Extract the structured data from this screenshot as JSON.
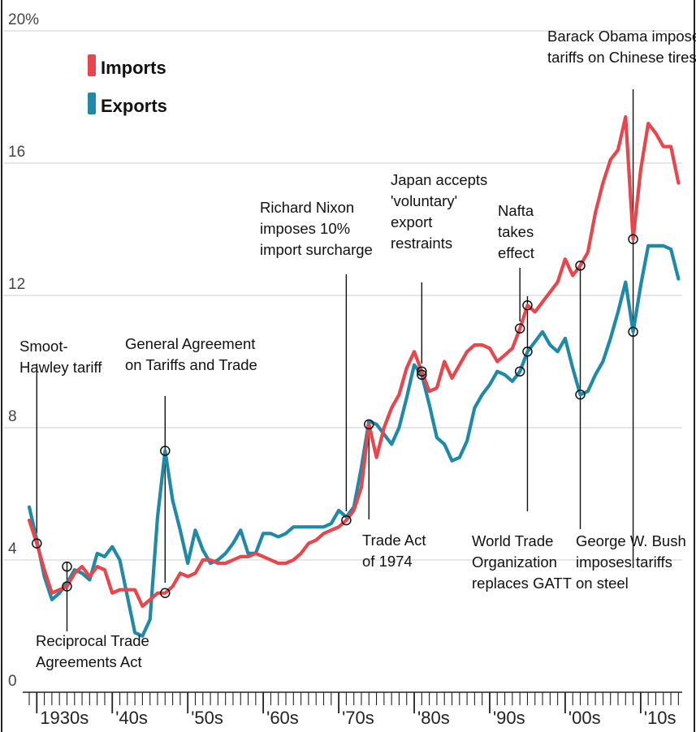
{
  "chart_data": {
    "type": "line",
    "title": "",
    "xlabel": "",
    "ylabel": "",
    "ylim": [
      0,
      20
    ],
    "xlim": [
      1929,
      2015.5
    ],
    "y_ticks": [
      {
        "value": 0,
        "label": "0"
      },
      {
        "value": 4,
        "label": "4"
      },
      {
        "value": 8,
        "label": "8"
      },
      {
        "value": 12,
        "label": "12"
      },
      {
        "value": 16,
        "label": "16"
      },
      {
        "value": 20,
        "label": "20%"
      }
    ],
    "x_ticks": [
      {
        "year": 1930,
        "label": "1930s"
      },
      {
        "year": 1940,
        "label": "'40s"
      },
      {
        "year": 1950,
        "label": "'50s"
      },
      {
        "year": 1960,
        "label": "'60s"
      },
      {
        "year": 1970,
        "label": "'70s"
      },
      {
        "year": 1980,
        "label": "'80s"
      },
      {
        "year": 1990,
        "label": "'90s"
      },
      {
        "year": 2000,
        "label": "'00s"
      },
      {
        "year": 2010,
        "label": "'10s"
      }
    ],
    "grid": true,
    "legend_position": "top-left",
    "series": [
      {
        "name": "Imports",
        "color": "#e8454c",
        "points": [
          [
            1929,
            5.2
          ],
          [
            1930,
            4.5
          ],
          [
            1931,
            3.7
          ],
          [
            1932,
            3.0
          ],
          [
            1933,
            3.1
          ],
          [
            1934,
            3.2
          ],
          [
            1935,
            3.6
          ],
          [
            1936,
            3.8
          ],
          [
            1937,
            3.5
          ],
          [
            1938,
            3.8
          ],
          [
            1939,
            3.7
          ],
          [
            1940,
            3.0
          ],
          [
            1941,
            3.1
          ],
          [
            1942,
            3.1
          ],
          [
            1943,
            3.1
          ],
          [
            1944,
            2.6
          ],
          [
            1945,
            2.8
          ],
          [
            1946,
            3.0
          ],
          [
            1947,
            3.0
          ],
          [
            1948,
            3.2
          ],
          [
            1949,
            3.6
          ],
          [
            1950,
            3.5
          ],
          [
            1951,
            3.6
          ],
          [
            1952,
            4.0
          ],
          [
            1953,
            4.0
          ],
          [
            1954,
            3.9
          ],
          [
            1955,
            3.9
          ],
          [
            1956,
            4.0
          ],
          [
            1957,
            4.1
          ],
          [
            1958,
            4.1
          ],
          [
            1959,
            4.2
          ],
          [
            1960,
            4.1
          ],
          [
            1961,
            4.0
          ],
          [
            1962,
            3.9
          ],
          [
            1963,
            3.9
          ],
          [
            1964,
            4.0
          ],
          [
            1965,
            4.2
          ],
          [
            1966,
            4.5
          ],
          [
            1967,
            4.6
          ],
          [
            1968,
            4.8
          ],
          [
            1969,
            4.9
          ],
          [
            1970,
            5.0
          ],
          [
            1971,
            5.2
          ],
          [
            1972,
            5.5
          ],
          [
            1973,
            6.2
          ],
          [
            1974,
            8.1
          ],
          [
            1975,
            7.1
          ],
          [
            1976,
            8.0
          ],
          [
            1977,
            8.6
          ],
          [
            1978,
            9.0
          ],
          [
            1979,
            9.8
          ],
          [
            1980,
            10.3
          ],
          [
            1981,
            9.7
          ],
          [
            1982,
            9.1
          ],
          [
            1983,
            9.2
          ],
          [
            1984,
            10.0
          ],
          [
            1985,
            9.5
          ],
          [
            1986,
            9.9
          ],
          [
            1987,
            10.3
          ],
          [
            1988,
            10.5
          ],
          [
            1989,
            10.5
          ],
          [
            1990,
            10.4
          ],
          [
            1991,
            10.0
          ],
          [
            1992,
            10.2
          ],
          [
            1993,
            10.4
          ],
          [
            1994,
            11.0
          ],
          [
            1995,
            11.7
          ],
          [
            1996,
            11.5
          ],
          [
            1997,
            11.8
          ],
          [
            1998,
            12.1
          ],
          [
            1999,
            12.4
          ],
          [
            2000,
            13.1
          ],
          [
            2001,
            12.6
          ],
          [
            2002,
            12.9
          ],
          [
            2003,
            13.3
          ],
          [
            2004,
            14.5
          ],
          [
            2005,
            15.4
          ],
          [
            2006,
            16.1
          ],
          [
            2007,
            16.4
          ],
          [
            2008,
            17.4
          ],
          [
            2009,
            13.7
          ],
          [
            2010,
            15.8
          ],
          [
            2011,
            17.2
          ],
          [
            2012,
            16.9
          ],
          [
            2013,
            16.5
          ],
          [
            2014,
            16.5
          ],
          [
            2015,
            15.4
          ]
        ]
      },
      {
        "name": "Exports",
        "color": "#1e8aa8",
        "points": [
          [
            1929,
            5.6
          ],
          [
            1930,
            4.6
          ],
          [
            1931,
            3.5
          ],
          [
            1932,
            2.8
          ],
          [
            1933,
            3.0
          ],
          [
            1934,
            3.3
          ],
          [
            1935,
            3.7
          ],
          [
            1936,
            3.6
          ],
          [
            1937,
            3.4
          ],
          [
            1938,
            4.2
          ],
          [
            1939,
            4.1
          ],
          [
            1940,
            4.4
          ],
          [
            1941,
            4.0
          ],
          [
            1942,
            2.9
          ],
          [
            1943,
            1.8
          ],
          [
            1944,
            1.7
          ],
          [
            1945,
            2.2
          ],
          [
            1946,
            5.3
          ],
          [
            1947,
            7.3
          ],
          [
            1948,
            5.8
          ],
          [
            1949,
            4.9
          ],
          [
            1950,
            3.9
          ],
          [
            1951,
            4.9
          ],
          [
            1952,
            4.3
          ],
          [
            1953,
            3.9
          ],
          [
            1954,
            4.0
          ],
          [
            1955,
            4.2
          ],
          [
            1956,
            4.5
          ],
          [
            1957,
            4.9
          ],
          [
            1958,
            4.2
          ],
          [
            1959,
            4.2
          ],
          [
            1960,
            4.8
          ],
          [
            1961,
            4.8
          ],
          [
            1962,
            4.7
          ],
          [
            1963,
            4.8
          ],
          [
            1964,
            5.0
          ],
          [
            1965,
            5.0
          ],
          [
            1966,
            5.0
          ],
          [
            1967,
            5.0
          ],
          [
            1968,
            5.0
          ],
          [
            1969,
            5.1
          ],
          [
            1970,
            5.5
          ],
          [
            1971,
            5.3
          ],
          [
            1972,
            5.6
          ],
          [
            1973,
            6.8
          ],
          [
            1974,
            8.2
          ],
          [
            1975,
            8.1
          ],
          [
            1976,
            7.8
          ],
          [
            1977,
            7.5
          ],
          [
            1978,
            8.0
          ],
          [
            1979,
            8.9
          ],
          [
            1980,
            9.9
          ],
          [
            1981,
            9.6
          ],
          [
            1982,
            8.7
          ],
          [
            1983,
            7.7
          ],
          [
            1984,
            7.5
          ],
          [
            1985,
            7.0
          ],
          [
            1986,
            7.1
          ],
          [
            1987,
            7.6
          ],
          [
            1988,
            8.6
          ],
          [
            1989,
            9.0
          ],
          [
            1990,
            9.3
          ],
          [
            1991,
            9.7
          ],
          [
            1992,
            9.6
          ],
          [
            1993,
            9.4
          ],
          [
            1994,
            9.7
          ],
          [
            1995,
            10.3
          ],
          [
            1996,
            10.6
          ],
          [
            1997,
            10.9
          ],
          [
            1998,
            10.5
          ],
          [
            1999,
            10.3
          ],
          [
            2000,
            10.7
          ],
          [
            2001,
            9.8
          ],
          [
            2002,
            9.0
          ],
          [
            2003,
            9.1
          ],
          [
            2004,
            9.6
          ],
          [
            2005,
            10.0
          ],
          [
            2006,
            10.7
          ],
          [
            2007,
            11.5
          ],
          [
            2008,
            12.4
          ],
          [
            2009,
            10.9
          ],
          [
            2010,
            12.3
          ],
          [
            2011,
            13.5
          ],
          [
            2012,
            13.5
          ],
          [
            2013,
            13.5
          ],
          [
            2014,
            13.4
          ],
          [
            2015,
            12.5
          ]
        ]
      }
    ],
    "annotations": [
      {
        "id": "smoot-hawley",
        "lines": [
          "Smoot-",
          "Hawley tariff"
        ],
        "year": 1930,
        "value": 4.5,
        "series": "Imports"
      },
      {
        "id": "reciprocal-trade",
        "lines": [
          "Reciprocal Trade",
          "Agreements Act"
        ],
        "year": 1934,
        "value": 3.2,
        "series": "Imports",
        "value2": 3.8
      },
      {
        "id": "gatt",
        "lines": [
          "General Agreement",
          "on Tariffs and Trade"
        ],
        "year": 1947,
        "value": 7.3,
        "series": "Exports",
        "value2": 3.0
      },
      {
        "id": "nixon",
        "lines": [
          "Richard Nixon",
          "imposes 10%",
          "import surcharge"
        ],
        "year": 1971,
        "value": 5.2,
        "series": "Imports"
      },
      {
        "id": "trade-act-1974",
        "lines": [
          "Trade Act",
          "of 1974"
        ],
        "year": 1974,
        "value": 8.1,
        "series": "Imports"
      },
      {
        "id": "japan",
        "lines": [
          "Japan accepts",
          "'voluntary'",
          "export",
          "restraints"
        ],
        "year": 1981,
        "value": 9.7,
        "series": "Imports",
        "value2": 9.6
      },
      {
        "id": "nafta",
        "lines": [
          "Nafta",
          "takes",
          "effect"
        ],
        "year": 1994,
        "value": 11.0,
        "series": "Imports",
        "value2": 9.7
      },
      {
        "id": "wto",
        "lines": [
          "World Trade",
          "Organization",
          "replaces GATT"
        ],
        "year": 1995,
        "value": 11.7,
        "series": "Imports",
        "value2": 10.3
      },
      {
        "id": "bush-steel",
        "lines": [
          "George W. Bush",
          "imposes tariffs",
          "on steel"
        ],
        "year": 2002,
        "value": 12.9,
        "series": "Imports",
        "value2": 9.0
      },
      {
        "id": "obama-tires",
        "lines": [
          "Barack Obama imposes",
          "tariffs on Chinese tires"
        ],
        "year": 2009,
        "value": 13.7,
        "series": "Imports",
        "value2": 10.9
      }
    ]
  }
}
